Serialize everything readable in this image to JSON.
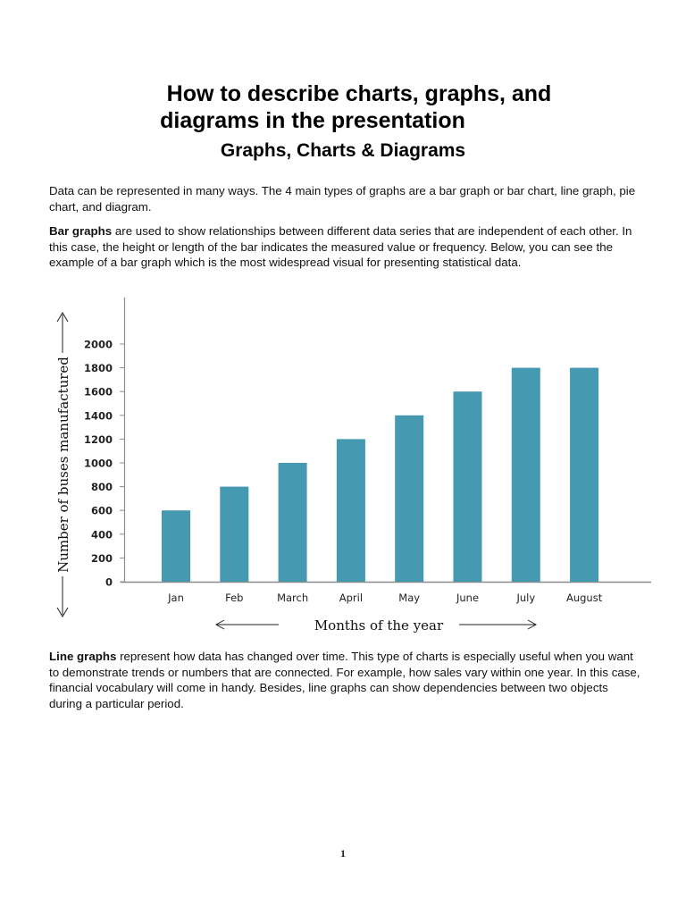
{
  "document": {
    "title_line1": "How to describe charts, graphs, and",
    "title_line2": "diagrams in the presentation",
    "subtitle": "Graphs, Charts & Diagrams",
    "paragraph1": "Data can be represented in many ways. The 4 main types of graphs are a bar graph or bar chart, line graph, pie chart, and diagram.",
    "paragraph2_bold": "Bar graphs",
    "paragraph2_rest": " are used to show relationships between different data series that are independent of each other. In this case, the height or length of the bar indicates the measured value or frequency. Below, you can see the example of a bar graph which is the most widespread visual for presenting statistical data.",
    "paragraph3_bold": "Line graphs",
    "paragraph3_rest": " represent how data has changed over time. This type of charts is especially useful when you want to demonstrate trends or numbers that are connected. For example, how sales vary within one year. In this case, financial vocabulary will come in handy. Besides, line graphs can show dependencies between two objects during a particular period.",
    "page_number": "1"
  },
  "colors": {
    "bar": "#4599b1",
    "axis": "#8c8c8c",
    "text": "#111111"
  },
  "chart_data": {
    "type": "bar",
    "title": "",
    "xlabel": "Months of the year",
    "ylabel": "Number of buses manufactured",
    "categories": [
      "Jan",
      "Feb",
      "March",
      "April",
      "May",
      "June",
      "July",
      "August"
    ],
    "values": [
      600,
      800,
      1000,
      1200,
      1400,
      1600,
      1800,
      1800
    ],
    "yticks": [
      "0",
      "200",
      "400",
      "600",
      "800",
      "1000",
      "1200",
      "1400",
      "1600",
      "1800",
      "2000"
    ],
    "ylim": [
      0,
      2000
    ],
    "grid": false,
    "legend": "none"
  }
}
